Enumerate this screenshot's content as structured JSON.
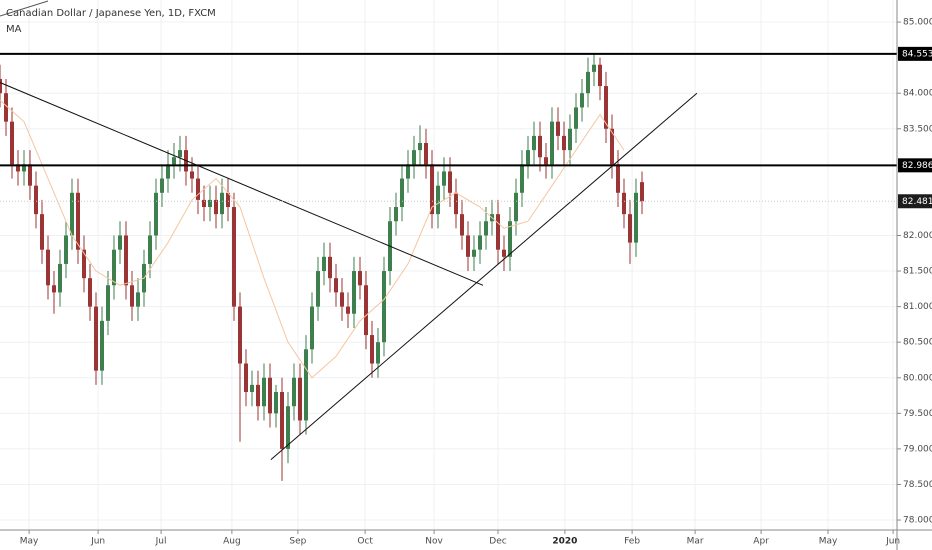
{
  "chart_data": {
    "type": "candlestick",
    "title": "Canadian Dollar / Japanese Yen, 1D, FXCM",
    "indicator": "MA",
    "x": [
      0,
      2,
      4,
      6,
      8,
      10,
      12,
      14,
      16,
      18,
      20,
      22,
      24,
      26,
      28,
      30,
      32,
      34,
      36,
      38,
      40,
      42,
      44,
      46,
      48,
      50,
      52,
      54,
      56,
      58,
      60,
      62,
      64,
      66,
      68,
      70,
      72,
      74,
      76,
      78,
      80,
      82,
      84,
      86,
      88,
      90,
      92,
      94,
      96,
      98,
      100,
      102,
      104,
      106,
      108,
      110,
      112,
      114,
      116,
      118,
      120,
      122,
      124,
      126,
      128,
      130,
      132,
      134,
      136,
      138,
      140,
      142,
      144,
      146,
      148,
      150,
      152,
      154,
      156,
      158,
      160,
      162,
      164,
      166,
      168,
      170,
      172,
      174,
      176,
      178,
      180,
      182,
      184,
      186,
      188,
      190,
      192,
      194,
      196,
      198,
      200,
      202,
      204,
      206,
      208,
      210,
      212,
      214
    ],
    "open": [
      84.2,
      84.0,
      83.6,
      83.0,
      82.9,
      83.0,
      82.7,
      82.3,
      81.8,
      81.3,
      81.2,
      81.6,
      82.0,
      82.6,
      81.8,
      81.4,
      81.0,
      80.1,
      80.8,
      81.3,
      81.8,
      82.0,
      81.3,
      81.0,
      81.2,
      81.6,
      82.0,
      82.6,
      82.8,
      83.0,
      83.1,
      83.2,
      82.9,
      82.8,
      82.5,
      82.4,
      82.5,
      82.3,
      82.6,
      82.4,
      81.0,
      80.2,
      79.8,
      79.9,
      79.6,
      80.0,
      79.5,
      79.8,
      79.0,
      79.6,
      80.0,
      79.4,
      80.4,
      81.0,
      81.5,
      81.7,
      81.4,
      81.2,
      81.0,
      80.9,
      81.5,
      81.3,
      80.6,
      80.2,
      80.5,
      81.5,
      82.2,
      82.4,
      82.8,
      83.0,
      83.2,
      83.3,
      83.0,
      82.3,
      82.7,
      82.9,
      82.6,
      82.3,
      82.0,
      81.7,
      81.8,
      82.0,
      82.2,
      82.3,
      81.8,
      81.7,
      82.2,
      82.6,
      83.0,
      83.2,
      83.4,
      83.1,
      83.0,
      83.6,
      83.4,
      83.2,
      83.5,
      83.8,
      84.0,
      84.3,
      84.4,
      84.1,
      83.5,
      83.0,
      82.6,
      82.3,
      81.9,
      82.75
    ],
    "high": [
      84.4,
      84.2,
      83.8,
      83.2,
      83.2,
      83.2,
      82.9,
      82.5,
      82.0,
      81.5,
      81.8,
      82.2,
      82.8,
      82.8,
      82.0,
      81.6,
      81.2,
      81.0,
      81.5,
      82.0,
      82.2,
      82.2,
      81.5,
      81.4,
      81.8,
      82.2,
      82.8,
      83.0,
      83.2,
      83.3,
      83.4,
      83.4,
      83.1,
      83.0,
      82.7,
      82.7,
      82.7,
      82.8,
      82.8,
      82.6,
      81.2,
      80.4,
      80.1,
      80.1,
      80.2,
      80.2,
      79.9,
      80.0,
      79.8,
      80.2,
      80.2,
      80.6,
      81.2,
      81.7,
      81.9,
      81.9,
      81.6,
      81.4,
      81.2,
      81.7,
      81.7,
      81.5,
      80.8,
      80.7,
      81.7,
      82.4,
      82.6,
      83.0,
      83.2,
      83.4,
      83.55,
      83.5,
      83.2,
      82.9,
      83.1,
      83.1,
      82.8,
      82.5,
      82.2,
      82.0,
      82.2,
      82.4,
      82.5,
      82.5,
      82.0,
      82.4,
      82.8,
      83.2,
      83.4,
      83.6,
      83.6,
      83.3,
      83.8,
      83.8,
      83.6,
      83.7,
      84.0,
      84.2,
      84.5,
      84.553,
      84.5,
      84.3,
      83.7,
      83.2,
      82.8,
      82.5,
      82.8,
      82.9
    ],
    "low": [
      83.8,
      83.4,
      82.8,
      82.7,
      82.7,
      82.5,
      82.1,
      81.6,
      81.1,
      80.9,
      81.0,
      81.4,
      81.8,
      81.6,
      81.2,
      80.8,
      79.9,
      79.9,
      80.6,
      81.1,
      81.6,
      81.1,
      80.8,
      80.8,
      81.0,
      81.4,
      81.8,
      82.4,
      82.6,
      82.8,
      82.9,
      82.7,
      82.6,
      82.3,
      82.2,
      82.2,
      82.1,
      82.1,
      82.2,
      80.8,
      79.1,
      79.6,
      79.6,
      79.4,
      79.4,
      79.3,
      79.3,
      78.55,
      78.8,
      79.4,
      79.2,
      79.2,
      80.2,
      80.8,
      81.3,
      81.2,
      81.0,
      80.8,
      80.7,
      80.7,
      81.1,
      80.4,
      80.0,
      80.0,
      80.3,
      81.3,
      82.0,
      82.2,
      82.6,
      82.8,
      83.0,
      82.8,
      82.1,
      82.1,
      82.5,
      82.4,
      82.1,
      81.8,
      81.5,
      81.5,
      81.6,
      81.8,
      82.0,
      81.6,
      81.5,
      81.5,
      82.0,
      82.4,
      82.8,
      83.0,
      82.9,
      82.8,
      82.8,
      83.2,
      83.0,
      83.0,
      83.3,
      83.6,
      83.8,
      84.1,
      83.9,
      83.3,
      82.8,
      82.4,
      82.1,
      81.6,
      81.7,
      82.3
    ],
    "close": [
      84.0,
      83.6,
      83.0,
      82.9,
      83.0,
      82.7,
      82.3,
      81.8,
      81.3,
      81.2,
      81.6,
      82.0,
      82.6,
      81.8,
      81.4,
      81.0,
      80.1,
      80.8,
      81.3,
      81.8,
      82.0,
      81.3,
      81.0,
      81.2,
      81.6,
      82.0,
      82.6,
      82.8,
      83.0,
      83.1,
      83.2,
      82.9,
      82.8,
      82.5,
      82.4,
      82.5,
      82.3,
      82.6,
      82.4,
      81.0,
      80.2,
      79.8,
      79.9,
      79.6,
      80.0,
      79.5,
      79.8,
      79.0,
      79.6,
      80.0,
      79.4,
      80.4,
      81.0,
      81.5,
      81.7,
      81.4,
      81.2,
      81.0,
      80.9,
      81.5,
      81.3,
      80.6,
      80.2,
      80.5,
      81.5,
      82.2,
      82.4,
      82.8,
      83.0,
      83.2,
      83.3,
      83.0,
      82.3,
      82.7,
      82.9,
      82.6,
      82.3,
      82.0,
      81.7,
      81.8,
      82.0,
      82.2,
      82.3,
      81.8,
      81.7,
      82.2,
      82.6,
      83.0,
      83.2,
      83.4,
      83.1,
      83.0,
      83.6,
      83.4,
      83.2,
      83.5,
      83.8,
      84.0,
      84.3,
      84.4,
      84.1,
      83.5,
      83.0,
      82.6,
      82.3,
      81.9,
      82.6,
      82.48
    ],
    "up_color": "#3d7f4d",
    "down_color": "#9b3535",
    "ma": {
      "x": [
        0,
        8,
        16,
        24,
        32,
        40,
        48,
        56,
        64,
        72,
        80,
        88,
        96,
        104,
        112,
        120,
        128,
        136,
        144,
        152,
        160,
        168,
        176,
        184,
        192,
        200,
        208
      ],
      "values": [
        83.9,
        83.6,
        82.8,
        82.0,
        81.5,
        81.3,
        81.4,
        81.9,
        82.5,
        82.8,
        82.4,
        81.4,
        80.5,
        80.0,
        80.3,
        80.8,
        81.1,
        81.6,
        82.4,
        82.6,
        82.4,
        82.1,
        82.2,
        82.7,
        83.2,
        83.7,
        83.2
      ],
      "color": "#f5c6a0"
    },
    "hlines": [
      84.553,
      82.986
    ],
    "last_price": 82.481,
    "trendlines": [
      {
        "x": [
          0,
          161
        ],
        "y": [
          84.15,
          81.3
        ]
      },
      {
        "x": [
          90.3,
          232.3
        ],
        "y": [
          78.85,
          84.0
        ]
      }
    ],
    "xlim": [
      0,
      299
    ],
    "ylim": [
      77.86,
      85.31
    ],
    "xticks": [
      {
        "value": 9.7,
        "label": "May"
      },
      {
        "value": 32.7,
        "label": "Jun"
      },
      {
        "value": 53.7,
        "label": "Jul"
      },
      {
        "value": 77.3,
        "label": "Aug"
      },
      {
        "value": 99.3,
        "label": "Sep"
      },
      {
        "value": 121.7,
        "label": "Oct"
      },
      {
        "value": 144.7,
        "label": "Nov"
      },
      {
        "value": 166,
        "label": "Dec"
      },
      {
        "value": 188.3,
        "label": "2020"
      },
      {
        "value": 210.7,
        "label": "Feb"
      },
      {
        "value": 231.7,
        "label": "Mar"
      },
      {
        "value": 253.7,
        "label": "Apr"
      },
      {
        "value": 276,
        "label": "May"
      },
      {
        "value": 297.7,
        "label": "Jun"
      }
    ],
    "yticks": [
      {
        "value": 85,
        "label": "85.000"
      },
      {
        "value": 84,
        "label": "84.000"
      },
      {
        "value": 83.5,
        "label": "83.500"
      },
      {
        "value": 82,
        "label": "82.000"
      },
      {
        "value": 81.5,
        "label": "81.500"
      },
      {
        "value": 81,
        "label": "81.000"
      },
      {
        "value": 80.5,
        "label": "80.500"
      },
      {
        "value": 80,
        "label": "80.000"
      },
      {
        "value": 79.5,
        "label": "79.500"
      },
      {
        "value": 79,
        "label": "79.000"
      },
      {
        "value": 78.5,
        "label": "78.500"
      },
      {
        "value": 78,
        "label": "78.000"
      }
    ],
    "grid": true
  }
}
